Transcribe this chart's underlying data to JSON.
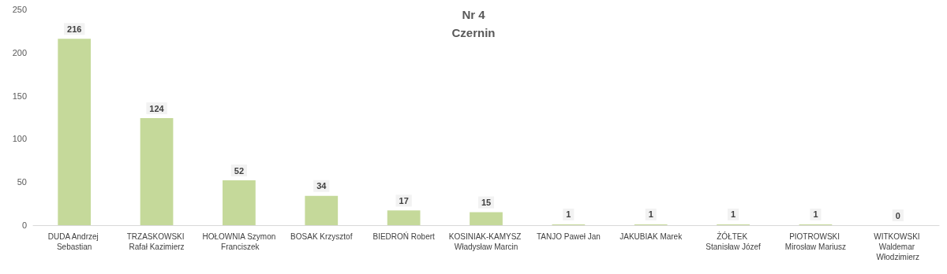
{
  "chart_data": {
    "type": "bar",
    "title": "Nr 4",
    "subtitle": "Czernin",
    "categories": [
      "DUDA Andrzej Sebastian",
      "TRZASKOWSKI Rafał Kazimierz",
      "HOŁOWNIA Szymon Franciszek",
      "BOSAK Krzysztof",
      "BIEDROŃ Robert",
      "KOSINIAK-KAMYSZ Władysław Marcin",
      "TANJO Paweł Jan",
      "JAKUBIAK Marek",
      "ŻÓŁTEK Stanisław Józef",
      "PIOTROWSKI Mirosław Mariusz",
      "WITKOWSKI Waldemar Włodzimierz"
    ],
    "values": [
      216,
      124,
      52,
      34,
      17,
      15,
      1,
      1,
      1,
      1,
      0
    ],
    "color": "#c5d99a",
    "ylim": [
      0,
      250
    ],
    "yticks": [
      0,
      50,
      100,
      150,
      200,
      250
    ],
    "grid": false,
    "data_labels": true
  }
}
